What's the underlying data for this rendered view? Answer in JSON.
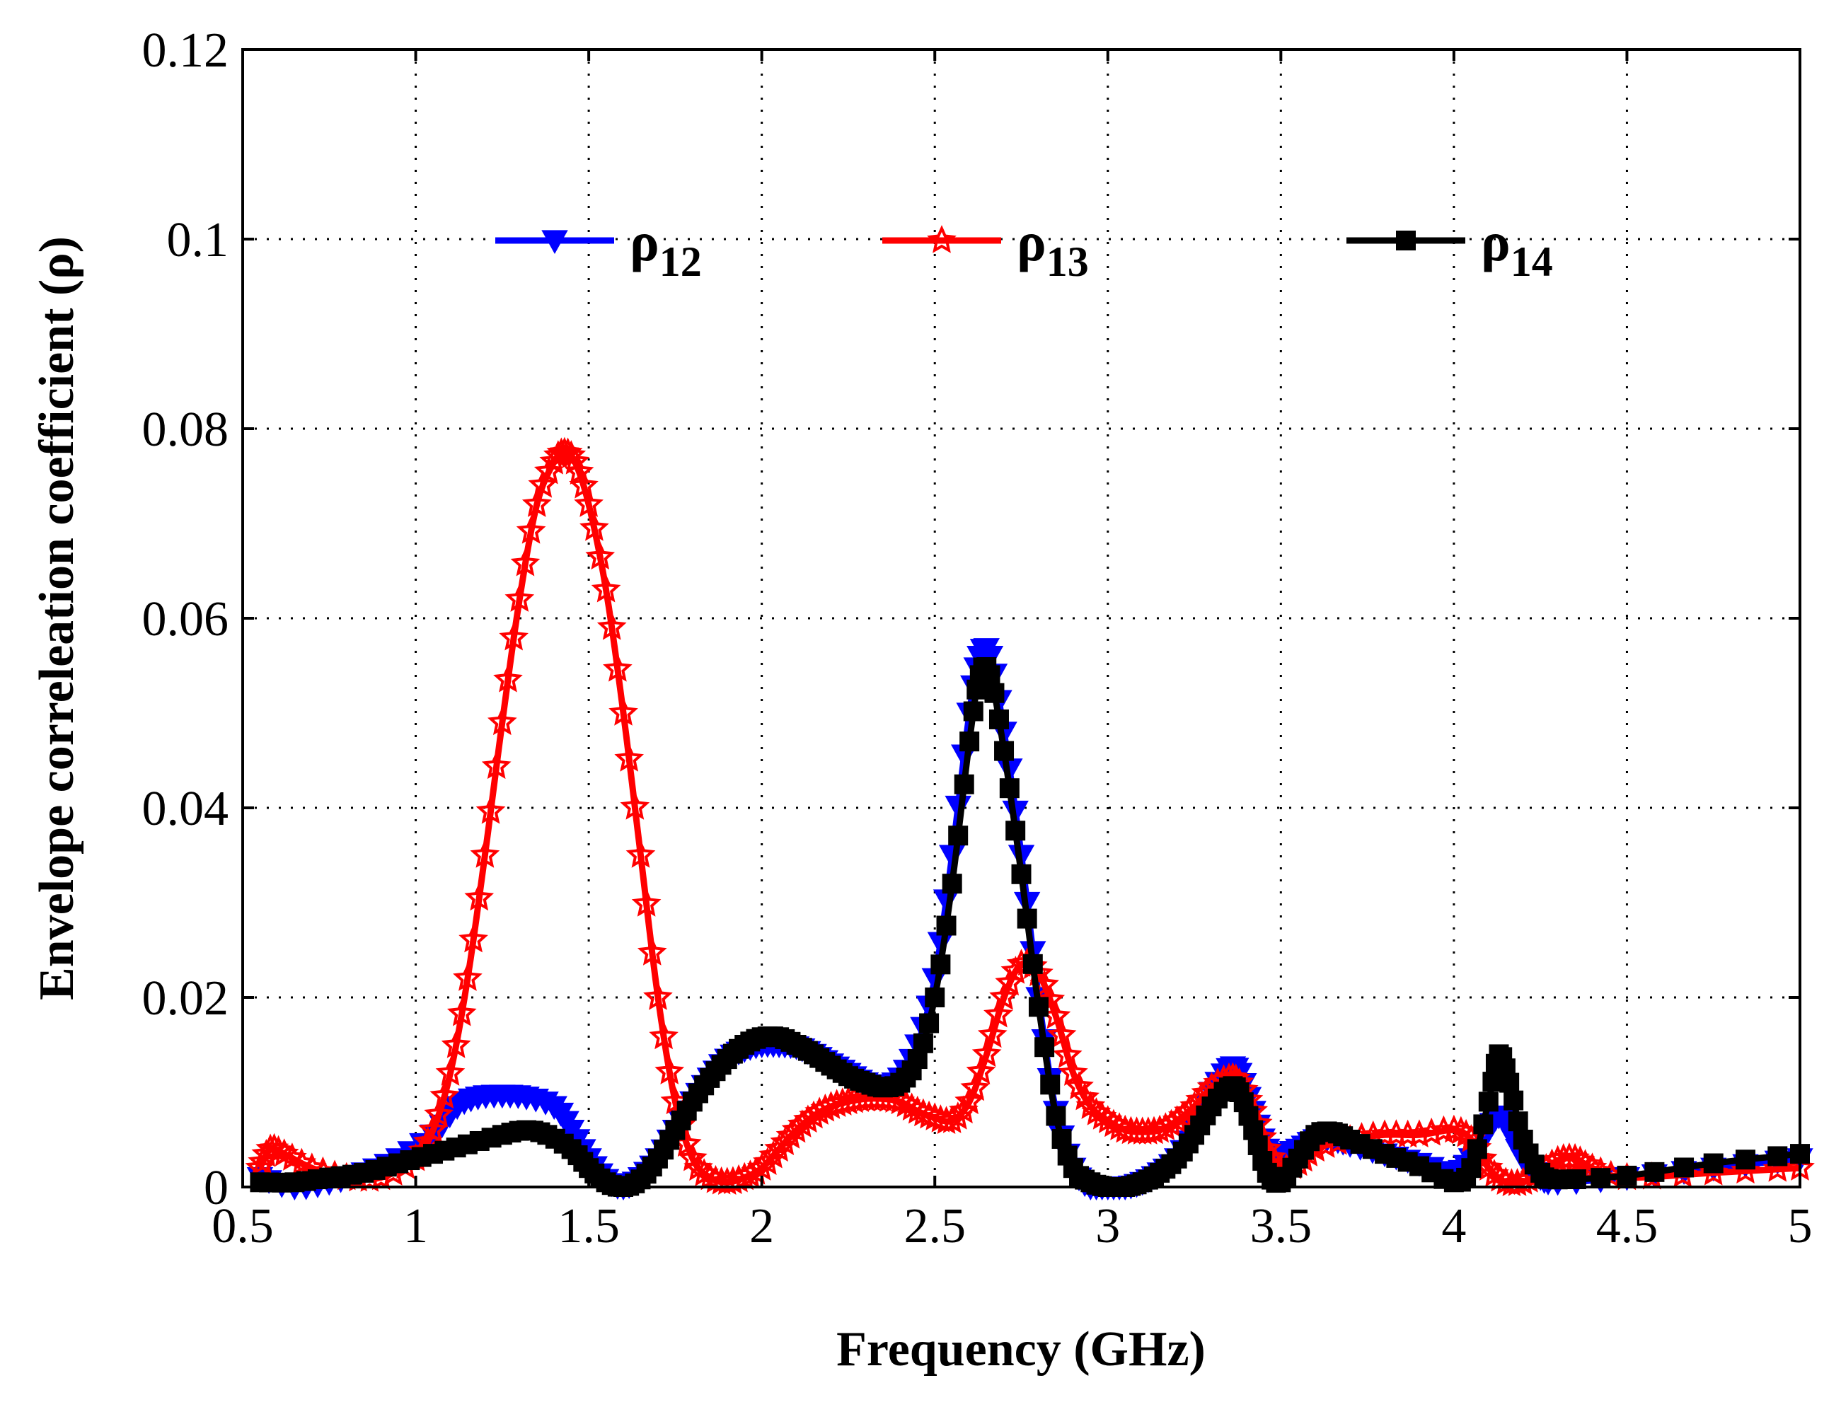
{
  "chart_data": {
    "type": "line",
    "title": "",
    "xlabel": "Frequency (GHz)",
    "ylabel": "Envelope correleation coefficient (ρ)",
    "xlim": [
      0.5,
      5
    ],
    "ylim": [
      0,
      0.12
    ],
    "xticks": [
      0.5,
      1,
      1.5,
      2,
      2.5,
      3,
      3.5,
      4,
      4.5,
      5
    ],
    "xtick_labels": [
      "0.5",
      "1",
      "1.5",
      "2",
      "2.5",
      "3",
      "3.5",
      "4",
      "4.5",
      "5"
    ],
    "yticks": [
      0,
      0.02,
      0.04,
      0.06,
      0.08,
      0.1,
      0.12
    ],
    "ytick_labels": [
      "0",
      "0.02",
      "0.04",
      "0.06",
      "0.08",
      "0.1",
      "0.12"
    ],
    "grid": true,
    "legend_position": "top",
    "series": [
      {
        "name": "ρ12",
        "symbol": "ρ",
        "subscript": "12",
        "color": "#0000ff",
        "marker": "triangle-down",
        "points": [
          [
            0.55,
            0.001
          ],
          [
            0.65,
            0.0
          ],
          [
            0.75,
            0.0005
          ],
          [
            0.85,
            0.0015
          ],
          [
            0.95,
            0.003
          ],
          [
            1.05,
            0.0055
          ],
          [
            1.12,
            0.0085
          ],
          [
            1.18,
            0.0095
          ],
          [
            1.25,
            0.0097
          ],
          [
            1.32,
            0.0095
          ],
          [
            1.4,
            0.0085
          ],
          [
            1.45,
            0.006
          ],
          [
            1.5,
            0.003
          ],
          [
            1.55,
            0.0008
          ],
          [
            1.6,
            0.0
          ],
          [
            1.65,
            0.001
          ],
          [
            1.7,
            0.003
          ],
          [
            1.75,
            0.006
          ],
          [
            1.8,
            0.009
          ],
          [
            1.85,
            0.0115
          ],
          [
            1.9,
            0.0135
          ],
          [
            1.95,
            0.0145
          ],
          [
            2.0,
            0.015
          ],
          [
            2.05,
            0.015
          ],
          [
            2.1,
            0.0148
          ],
          [
            2.15,
            0.014
          ],
          [
            2.2,
            0.013
          ],
          [
            2.25,
            0.012
          ],
          [
            2.3,
            0.011
          ],
          [
            2.35,
            0.0107
          ],
          [
            2.4,
            0.0115
          ],
          [
            2.45,
            0.015
          ],
          [
            2.5,
            0.022
          ],
          [
            2.55,
            0.035
          ],
          [
            2.6,
            0.05
          ],
          [
            2.63,
            0.056
          ],
          [
            2.66,
            0.056
          ],
          [
            2.7,
            0.048
          ],
          [
            2.75,
            0.035
          ],
          [
            2.8,
            0.02
          ],
          [
            2.85,
            0.008
          ],
          [
            2.9,
            0.002
          ],
          [
            2.95,
            0.0
          ],
          [
            3.0,
            0.0
          ],
          [
            3.05,
            0.0
          ],
          [
            3.1,
            0.0005
          ],
          [
            3.15,
            0.0015
          ],
          [
            3.2,
            0.003
          ],
          [
            3.25,
            0.006
          ],
          [
            3.3,
            0.01
          ],
          [
            3.35,
            0.0125
          ],
          [
            3.38,
            0.012
          ],
          [
            3.42,
            0.008
          ],
          [
            3.46,
            0.004
          ],
          [
            3.5,
            0.0035
          ],
          [
            3.55,
            0.004
          ],
          [
            3.6,
            0.005
          ],
          [
            3.65,
            0.005
          ],
          [
            3.7,
            0.0045
          ],
          [
            3.8,
            0.0035
          ],
          [
            3.9,
            0.0025
          ],
          [
            4.0,
            0.0015
          ],
          [
            4.05,
            0.003
          ],
          [
            4.1,
            0.006
          ],
          [
            4.13,
            0.0075
          ],
          [
            4.16,
            0.006
          ],
          [
            4.2,
            0.003
          ],
          [
            4.25,
            0.001
          ],
          [
            4.3,
            0.0005
          ],
          [
            4.5,
            0.001
          ],
          [
            4.75,
            0.002
          ],
          [
            5.0,
            0.003
          ]
        ]
      },
      {
        "name": "ρ13",
        "symbol": "ρ",
        "subscript": "13",
        "color": "#ff0000",
        "marker": "star",
        "points": [
          [
            0.55,
            0.002
          ],
          [
            0.58,
            0.004
          ],
          [
            0.62,
            0.0035
          ],
          [
            0.7,
            0.002
          ],
          [
            0.8,
            0.001
          ],
          [
            0.9,
            0.001
          ],
          [
            1.0,
            0.003
          ],
          [
            1.05,
            0.006
          ],
          [
            1.1,
            0.012
          ],
          [
            1.15,
            0.022
          ],
          [
            1.2,
            0.035
          ],
          [
            1.25,
            0.049
          ],
          [
            1.3,
            0.062
          ],
          [
            1.35,
            0.072
          ],
          [
            1.4,
            0.0765
          ],
          [
            1.43,
            0.0775
          ],
          [
            1.46,
            0.0765
          ],
          [
            1.5,
            0.072
          ],
          [
            1.55,
            0.063
          ],
          [
            1.6,
            0.05
          ],
          [
            1.65,
            0.035
          ],
          [
            1.7,
            0.02
          ],
          [
            1.75,
            0.009
          ],
          [
            1.8,
            0.003
          ],
          [
            1.85,
            0.001
          ],
          [
            1.9,
            0.0005
          ],
          [
            1.95,
            0.001
          ],
          [
            2.0,
            0.002
          ],
          [
            2.05,
            0.004
          ],
          [
            2.1,
            0.006
          ],
          [
            2.15,
            0.0075
          ],
          [
            2.2,
            0.0085
          ],
          [
            2.25,
            0.009
          ],
          [
            2.3,
            0.0093
          ],
          [
            2.35,
            0.0093
          ],
          [
            2.4,
            0.009
          ],
          [
            2.45,
            0.008
          ],
          [
            2.5,
            0.0073
          ],
          [
            2.55,
            0.007
          ],
          [
            2.6,
            0.009
          ],
          [
            2.65,
            0.014
          ],
          [
            2.7,
            0.02
          ],
          [
            2.75,
            0.0235
          ],
          [
            2.8,
            0.0225
          ],
          [
            2.85,
            0.018
          ],
          [
            2.9,
            0.012
          ],
          [
            2.95,
            0.0085
          ],
          [
            3.0,
            0.007
          ],
          [
            3.05,
            0.006
          ],
          [
            3.1,
            0.0058
          ],
          [
            3.15,
            0.006
          ],
          [
            3.2,
            0.007
          ],
          [
            3.25,
            0.0085
          ],
          [
            3.3,
            0.0105
          ],
          [
            3.35,
            0.0115
          ],
          [
            3.38,
            0.011
          ],
          [
            3.42,
            0.008
          ],
          [
            3.46,
            0.004
          ],
          [
            3.5,
            0.002
          ],
          [
            3.55,
            0.0025
          ],
          [
            3.6,
            0.004
          ],
          [
            3.7,
            0.005
          ],
          [
            3.8,
            0.0055
          ],
          [
            3.9,
            0.0055
          ],
          [
            4.0,
            0.006
          ],
          [
            4.05,
            0.005
          ],
          [
            4.1,
            0.002
          ],
          [
            4.15,
            0.0005
          ],
          [
            4.2,
            0.0005
          ],
          [
            4.25,
            0.0015
          ],
          [
            4.3,
            0.0028
          ],
          [
            4.35,
            0.003
          ],
          [
            4.4,
            0.002
          ],
          [
            4.5,
            0.001
          ],
          [
            4.75,
            0.0015
          ],
          [
            5.0,
            0.002
          ]
        ]
      },
      {
        "name": "ρ14",
        "symbol": "ρ",
        "subscript": "14",
        "color": "#000000",
        "marker": "square",
        "points": [
          [
            0.55,
            0.0005
          ],
          [
            0.65,
            0.0005
          ],
          [
            0.75,
            0.001
          ],
          [
            0.85,
            0.0015
          ],
          [
            0.95,
            0.0025
          ],
          [
            1.05,
            0.0035
          ],
          [
            1.15,
            0.0045
          ],
          [
            1.25,
            0.0055
          ],
          [
            1.32,
            0.006
          ],
          [
            1.38,
            0.0055
          ],
          [
            1.45,
            0.004
          ],
          [
            1.5,
            0.002
          ],
          [
            1.55,
            0.0005
          ],
          [
            1.6,
            0.0
          ],
          [
            1.65,
            0.0008
          ],
          [
            1.7,
            0.003
          ],
          [
            1.75,
            0.006
          ],
          [
            1.8,
            0.009
          ],
          [
            1.85,
            0.0115
          ],
          [
            1.9,
            0.0135
          ],
          [
            1.95,
            0.015
          ],
          [
            2.0,
            0.0158
          ],
          [
            2.05,
            0.0158
          ],
          [
            2.1,
            0.015
          ],
          [
            2.15,
            0.014
          ],
          [
            2.2,
            0.0128
          ],
          [
            2.25,
            0.0117
          ],
          [
            2.3,
            0.011
          ],
          [
            2.35,
            0.0105
          ],
          [
            2.4,
            0.011
          ],
          [
            2.45,
            0.0135
          ],
          [
            2.5,
            0.02
          ],
          [
            2.55,
            0.032
          ],
          [
            2.6,
            0.047
          ],
          [
            2.63,
            0.054
          ],
          [
            2.66,
            0.054
          ],
          [
            2.7,
            0.046
          ],
          [
            2.75,
            0.033
          ],
          [
            2.8,
            0.019
          ],
          [
            2.85,
            0.0075
          ],
          [
            2.9,
            0.002
          ],
          [
            2.95,
            0.0005
          ],
          [
            3.0,
            0.0
          ],
          [
            3.05,
            0.0
          ],
          [
            3.1,
            0.0005
          ],
          [
            3.15,
            0.0015
          ],
          [
            3.2,
            0.003
          ],
          [
            3.25,
            0.0055
          ],
          [
            3.3,
            0.0085
          ],
          [
            3.35,
            0.0105
          ],
          [
            3.38,
            0.01
          ],
          [
            3.42,
            0.006
          ],
          [
            3.46,
            0.0015
          ],
          [
            3.5,
            0.0005
          ],
          [
            3.55,
            0.003
          ],
          [
            3.6,
            0.0055
          ],
          [
            3.65,
            0.0058
          ],
          [
            3.7,
            0.005
          ],
          [
            3.8,
            0.0035
          ],
          [
            3.9,
            0.0022
          ],
          [
            4.0,
            0.0005
          ],
          [
            4.05,
            0.002
          ],
          [
            4.1,
            0.009
          ],
          [
            4.13,
            0.014
          ],
          [
            4.16,
            0.011
          ],
          [
            4.2,
            0.005
          ],
          [
            4.25,
            0.0015
          ],
          [
            4.3,
            0.0008
          ],
          [
            4.5,
            0.0012
          ],
          [
            4.75,
            0.0025
          ],
          [
            5.0,
            0.0035
          ]
        ]
      }
    ]
  }
}
